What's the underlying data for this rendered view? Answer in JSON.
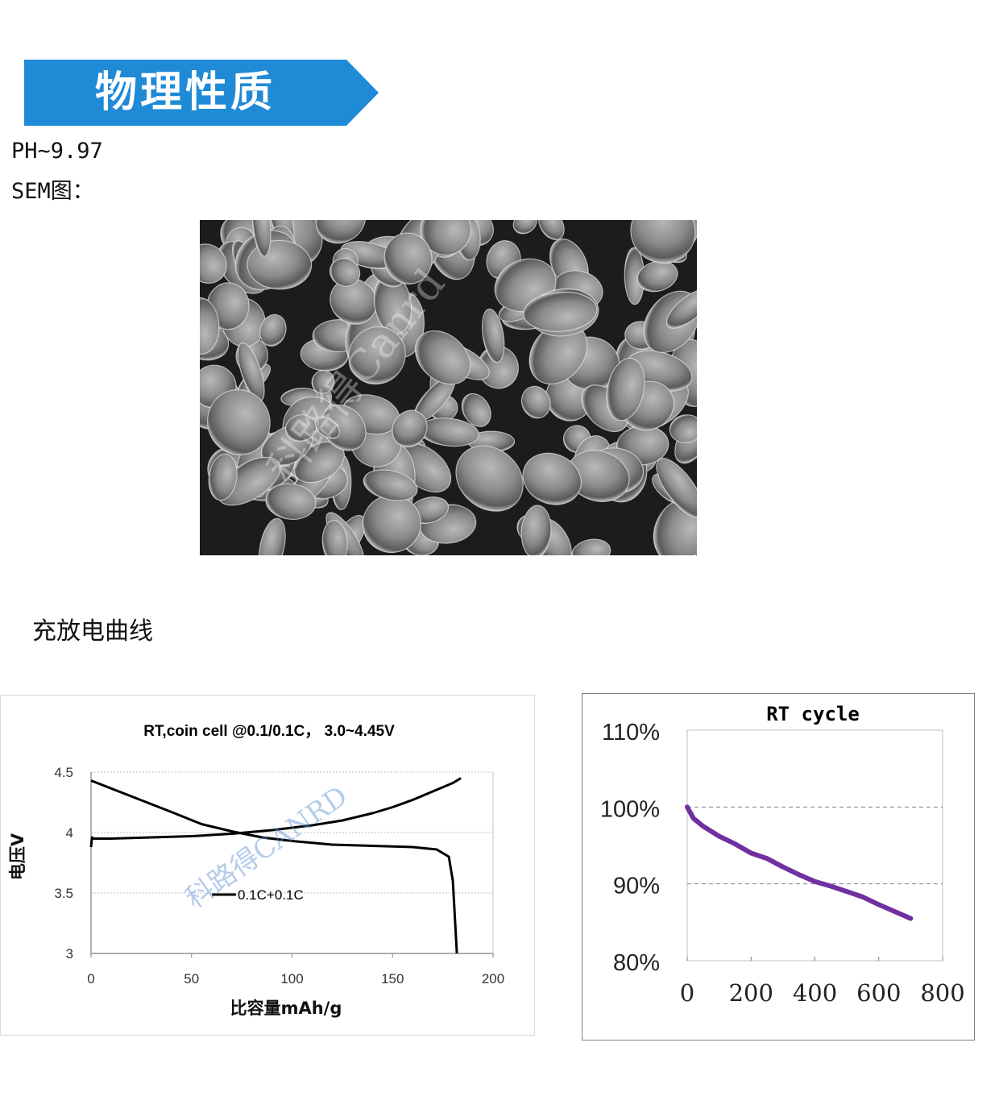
{
  "banner": {
    "title": "物理性质",
    "color": "#1f8ad6"
  },
  "properties": {
    "ph": "PH~9.97",
    "sem_label": "SEM图："
  },
  "sem_image": {
    "watermark": "科路得Canrd"
  },
  "section": {
    "charge_discharge": "充放电曲线"
  },
  "chart_data": [
    {
      "type": "line",
      "title": "RT,coin cell @0.1/0.1C， 3.0~4.45V",
      "xlabel": "比容量mAh/g",
      "ylabel": "电压V",
      "xlim": [
        0,
        200
      ],
      "ylim": [
        3,
        4.5
      ],
      "xticks": [
        "0",
        "50",
        "100",
        "150",
        "200"
      ],
      "yticks": [
        "3",
        "3.5",
        "4",
        "4.5"
      ],
      "grid": "horizontal dotted",
      "legend": [
        "0.1C+0.1C"
      ],
      "legend_position": "center-left",
      "watermark": "科路得CANRD",
      "series": [
        {
          "name": "0.1C+0.1C",
          "part": "charge",
          "x": [
            0,
            0.5,
            1,
            10,
            30,
            50,
            70,
            90,
            110,
            125,
            140,
            150,
            160,
            170,
            180,
            184
          ],
          "y": [
            3.88,
            3.96,
            3.95,
            3.95,
            3.96,
            3.97,
            3.99,
            4.02,
            4.06,
            4.1,
            4.16,
            4.21,
            4.27,
            4.34,
            4.41,
            4.45
          ]
        },
        {
          "name": "0.1C+0.1C",
          "part": "discharge",
          "x": [
            0,
            20,
            40,
            55,
            70,
            85,
            100,
            120,
            140,
            160,
            172,
            178,
            180,
            181,
            182
          ],
          "y": [
            4.43,
            4.3,
            4.17,
            4.07,
            4.01,
            3.96,
            3.93,
            3.9,
            3.89,
            3.88,
            3.86,
            3.8,
            3.6,
            3.3,
            3.0
          ]
        }
      ]
    },
    {
      "type": "line",
      "title": "RT cycle",
      "xlim": [
        0,
        800
      ],
      "ylim": [
        0.8,
        1.1
      ],
      "xticks": [
        "0",
        "200",
        "400",
        "600",
        "800"
      ],
      "yticks": [
        "110%",
        "100%",
        "90%",
        "80%"
      ],
      "grid": "dashed at 90% and 100%",
      "series_color": "#7030a0",
      "series": [
        {
          "x": [
            0,
            20,
            50,
            100,
            150,
            200,
            250,
            300,
            350,
            400,
            450,
            500,
            550,
            600,
            650,
            700
          ],
          "y": [
            1.0,
            0.985,
            0.975,
            0.962,
            0.952,
            0.94,
            0.933,
            0.922,
            0.912,
            0.903,
            0.897,
            0.89,
            0.883,
            0.873,
            0.864,
            0.855
          ]
        }
      ]
    }
  ]
}
